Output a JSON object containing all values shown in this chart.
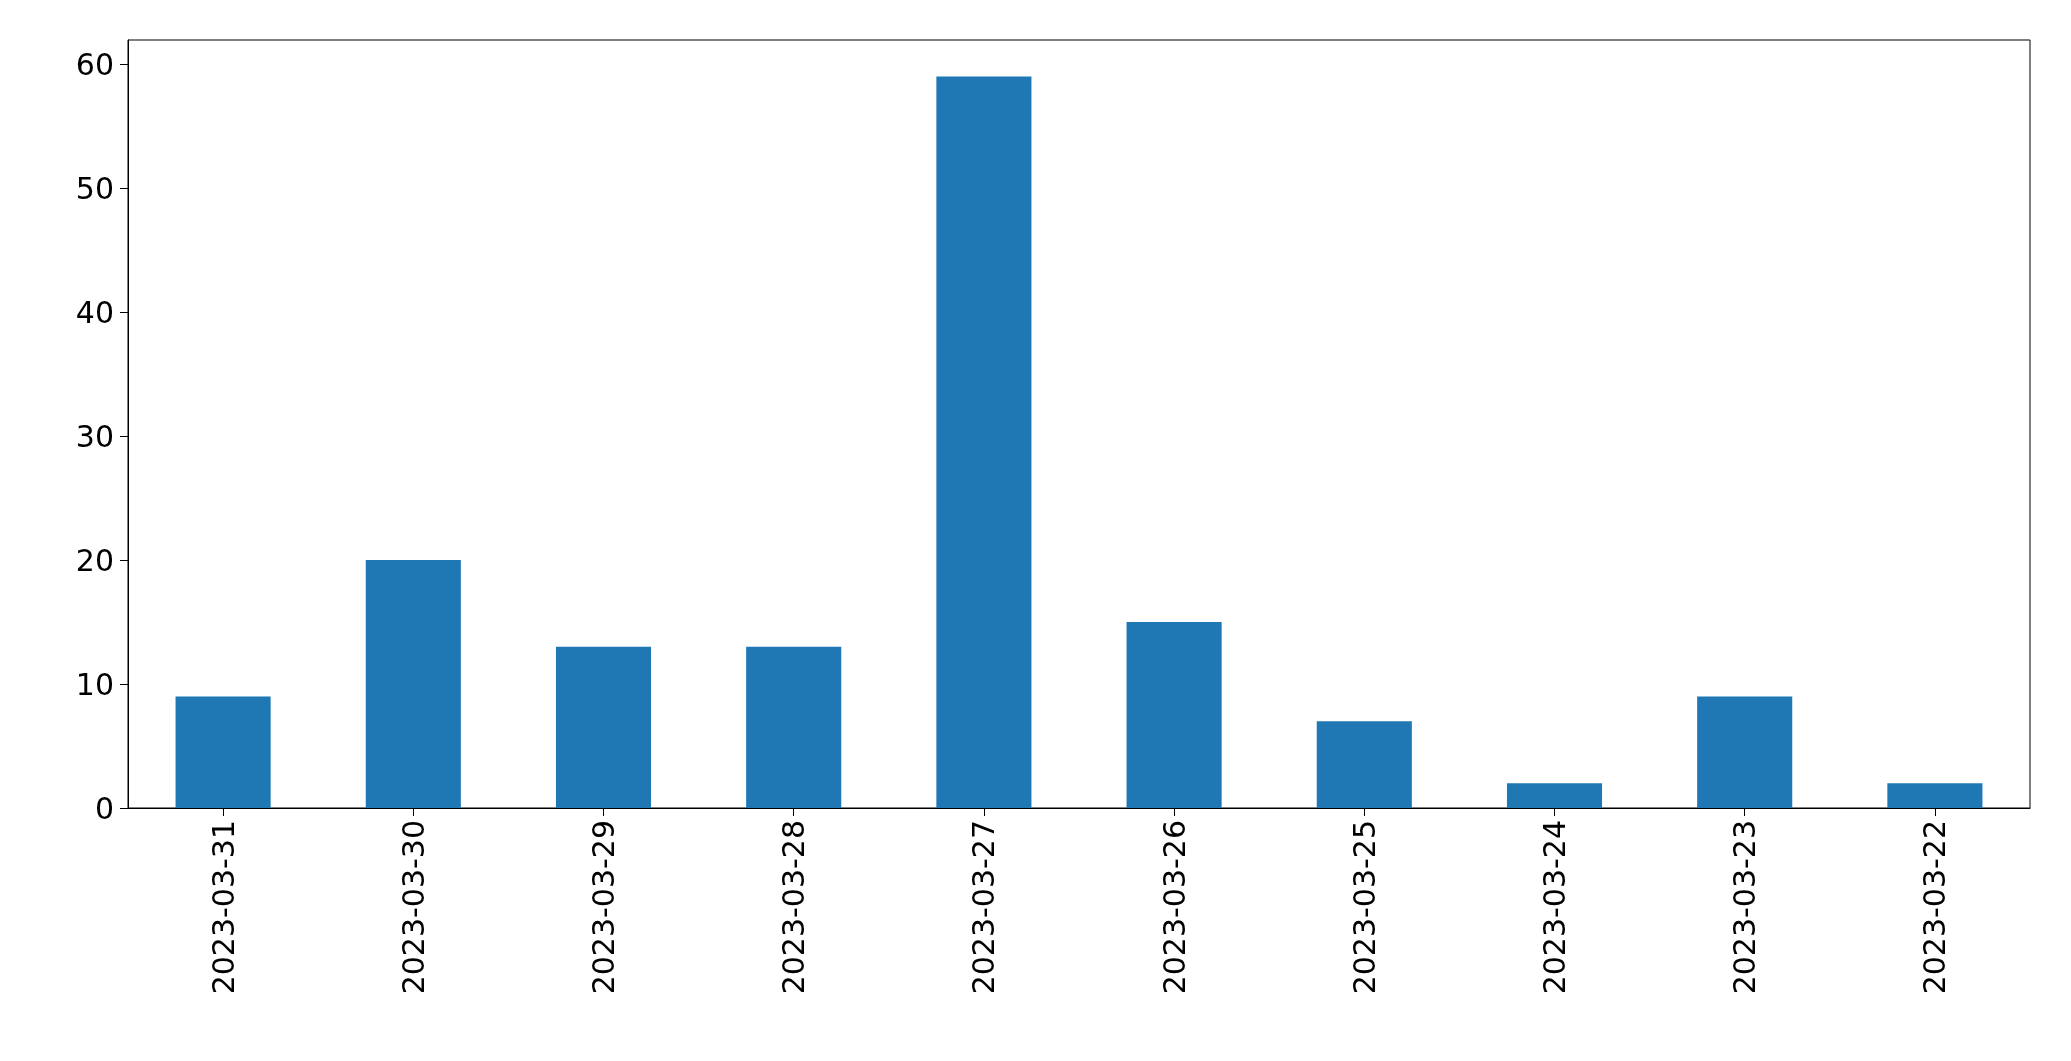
{
  "chart_data": {
    "type": "bar",
    "categories": [
      "2023-03-31",
      "2023-03-30",
      "2023-03-29",
      "2023-03-28",
      "2023-03-27",
      "2023-03-26",
      "2023-03-25",
      "2023-03-24",
      "2023-03-23",
      "2023-03-22"
    ],
    "values": [
      9,
      20,
      13,
      13,
      59,
      15,
      7,
      2,
      9,
      2
    ],
    "color": "#1f77b4",
    "ylim": [
      0,
      61.95
    ],
    "yticks": [
      0,
      10,
      20,
      30,
      40,
      50,
      60
    ],
    "grid": false
  }
}
